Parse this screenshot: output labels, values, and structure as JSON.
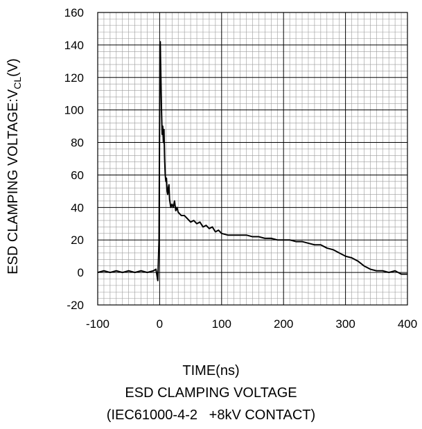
{
  "chart_data": {
    "type": "line",
    "xlabel": "TIME(ns)",
    "ylabel_main": "ESD CLAMPING VOLTAGE:V",
    "ylabel_sub": "CL",
    "ylabel_unit": "(V)",
    "caption_line1": "ESD CLAMPING VOLTAGE",
    "caption_line2": "(IEC61000-4-2   +8kV CONTACT)",
    "xlim": [
      -100,
      400
    ],
    "ylim": [
      -20,
      160
    ],
    "xticks": [
      "-100",
      "0",
      "100",
      "200",
      "300",
      "400"
    ],
    "yticks": [
      "160",
      "140",
      "120",
      "100",
      "80",
      "60",
      "40",
      "20",
      "0",
      "-20"
    ],
    "grid": true,
    "series": [
      {
        "x": [
          -100,
          -90,
          -80,
          -70,
          -60,
          -50,
          -40,
          -30,
          -20,
          -10,
          -6,
          -3,
          -1,
          0,
          0.5,
          1,
          1.5,
          2,
          3,
          4,
          5,
          6,
          7,
          8,
          9,
          10,
          11,
          12,
          13,
          14,
          15,
          16,
          18,
          20,
          22,
          24,
          26,
          28,
          30,
          35,
          40,
          45,
          50,
          55,
          60,
          65,
          70,
          75,
          80,
          85,
          90,
          95,
          100,
          110,
          120,
          130,
          140,
          150,
          160,
          170,
          180,
          190,
          200,
          210,
          220,
          230,
          240,
          250,
          260,
          270,
          280,
          290,
          300,
          310,
          320,
          330,
          340,
          350,
          360,
          370,
          380,
          390,
          400
        ],
        "values": [
          0,
          1,
          0,
          1,
          0,
          1,
          0,
          1,
          0,
          1,
          2,
          -5,
          20,
          100,
          140,
          142,
          130,
          120,
          100,
          85,
          90,
          80,
          88,
          70,
          60,
          56,
          58,
          50,
          48,
          52,
          54,
          45,
          40,
          42,
          40,
          44,
          38,
          40,
          37,
          35,
          35,
          33,
          31,
          32,
          30,
          31,
          28,
          29,
          27,
          28,
          25,
          26,
          24,
          23,
          23,
          23,
          23,
          22,
          22,
          21,
          21,
          20,
          20,
          20,
          19,
          19,
          18,
          17,
          17,
          15,
          14,
          12,
          10,
          9,
          7,
          4,
          2,
          1,
          1,
          0,
          1,
          -1,
          -1
        ]
      }
    ]
  }
}
